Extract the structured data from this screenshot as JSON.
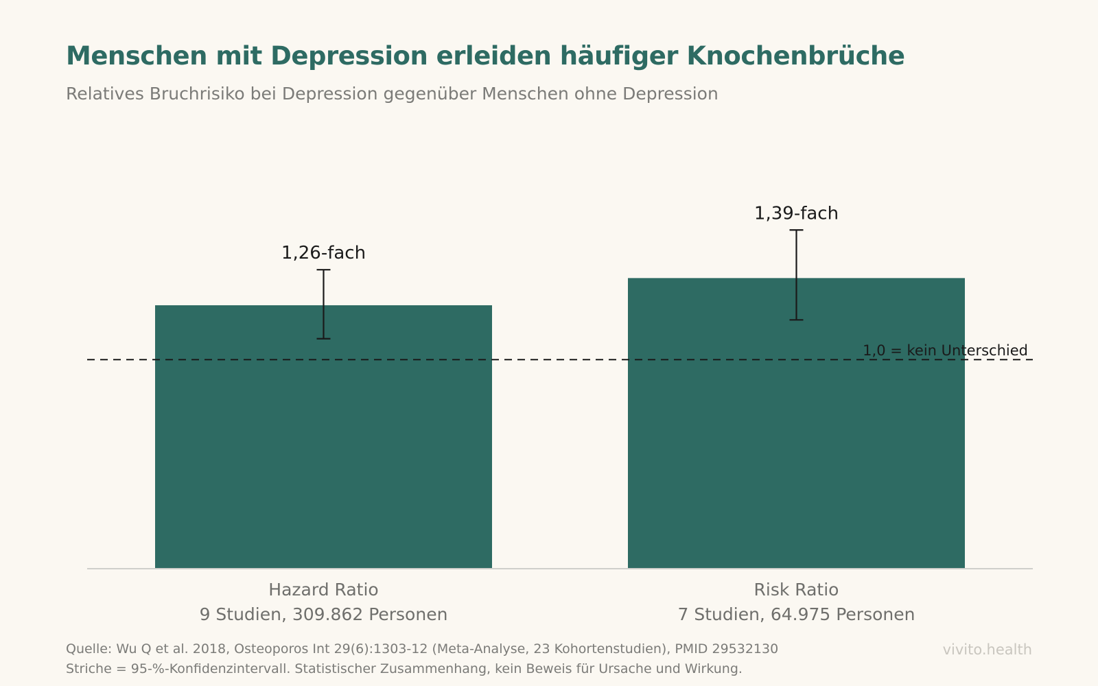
{
  "header": {
    "title": "Menschen mit Depression erleiden häufiger Knochenbrüche",
    "subtitle": "Relatives Bruchrisiko bei Depression gegenüber Menschen ohne Depression"
  },
  "chart_data": {
    "type": "bar",
    "categories": [
      "Hazard Ratio",
      "Risk Ratio"
    ],
    "category_sublabels": [
      "9 Studien, 309.862 Personen",
      "7 Studien, 64.975 Personen"
    ],
    "values": [
      1.26,
      1.39
    ],
    "value_labels": [
      "1,26-fach",
      "1,39-fach"
    ],
    "ci_lower": [
      1.1,
      1.19
    ],
    "ci_upper": [
      1.43,
      1.62
    ],
    "error_bars": "95% CI",
    "reference_line": {
      "value": 1.0,
      "label": "1,0 = kein Unterschied",
      "style": "dashed"
    },
    "ylim": [
      0,
      2.72
    ],
    "title": "Menschen mit Depression erleiden häufiger Knochenbrüche",
    "subtitle": "Relatives Bruchrisiko bei Depression gegenüber Menschen ohne Depression",
    "grid": false,
    "colors": {
      "bar": "#2e6b63",
      "errorbar": "#1a1a1a",
      "axis": "#cfcfcb",
      "reference": "#1a1a1a"
    }
  },
  "footer": {
    "source": "Quelle: Wu Q et al. 2018, Osteoporos Int 29(6):1303-12 (Meta-Analyse, 23 Kohortenstudien), PMID 29532130",
    "note": "Striche = 95-%-Konfidenzintervall. Statistischer Zusammenhang, kein Beweis für Ursache und Wirkung.",
    "brand": "vivito.health"
  },
  "colors": {
    "background": "#fbf8f2",
    "title": "#2e6b63",
    "muted_text": "#7b7b78",
    "brand": "#c9c6bf"
  }
}
